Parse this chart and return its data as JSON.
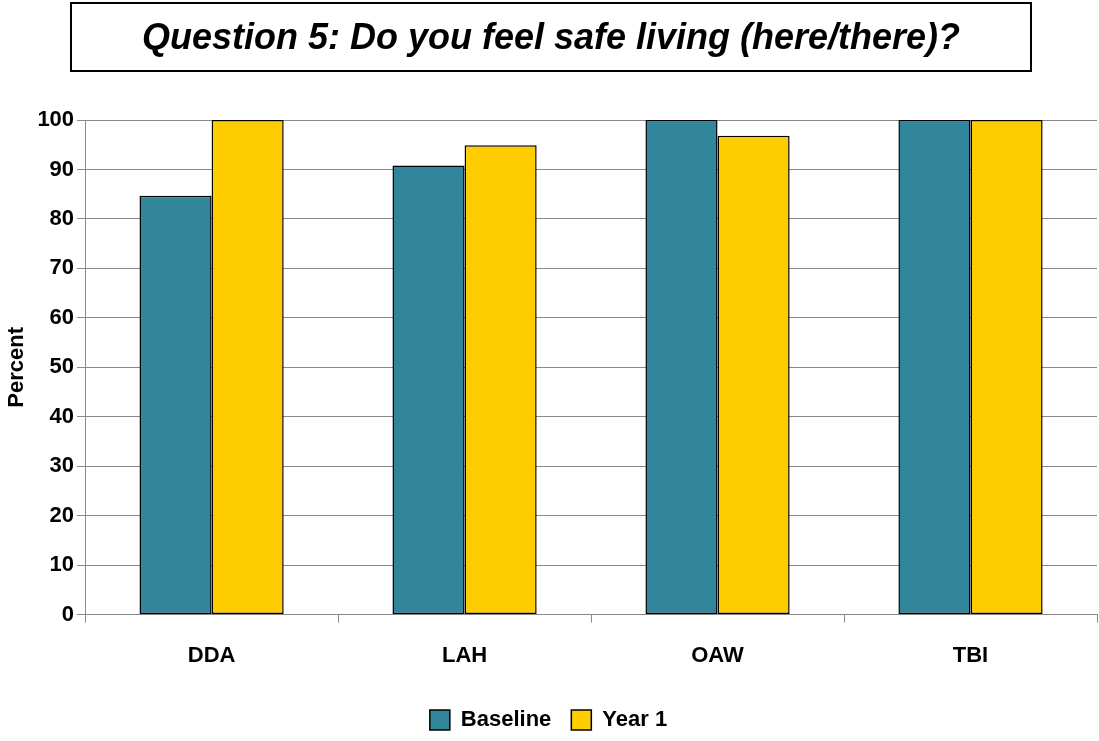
{
  "chart_data": {
    "type": "bar",
    "title": "Question 5:  Do you feel safe living (here/there)?",
    "ylabel": "Percent",
    "categories": [
      "DDA",
      "LAH",
      "OAW",
      "TBI"
    ],
    "series": [
      {
        "name": "Baseline",
        "color": "#31869b",
        "values": [
          84.7,
          90.8,
          100,
          100
        ]
      },
      {
        "name": "Year 1",
        "color": "#ffcc00",
        "values": [
          100,
          94.9,
          96.8,
          100
        ]
      }
    ],
    "ylim": [
      0,
      100
    ],
    "yticks": [
      0,
      10,
      20,
      30,
      40,
      50,
      60,
      70,
      80,
      90,
      100
    ],
    "grid": "y",
    "legend": "bottom"
  }
}
